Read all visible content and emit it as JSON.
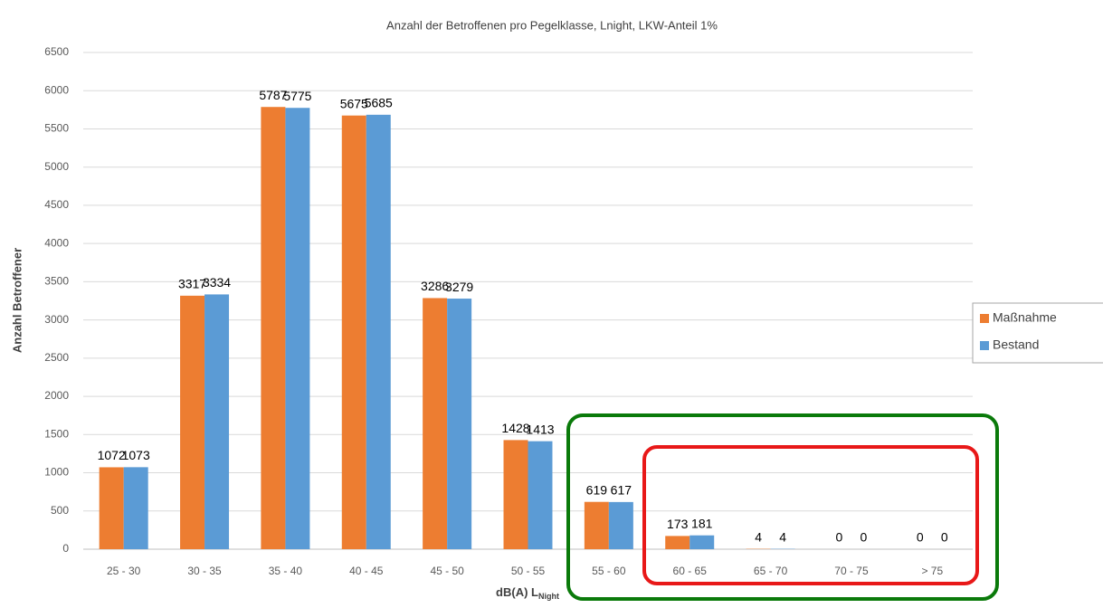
{
  "chart_data": {
    "type": "bar",
    "title": "Anzahl der Betroffenen pro Pegelklasse, Lnight, LKW-Anteil 1%",
    "x_label": "dB(A) L",
    "x_label_subscript": "Night",
    "y_label": "Anzahl Betroffener",
    "categories": [
      "25 - 30",
      "30 - 35",
      "35 - 40",
      "40 - 45",
      "45 - 50",
      "50 - 55",
      "55 - 60",
      "60 - 65",
      "65 - 70",
      "70 - 75",
      "> 75"
    ],
    "series": [
      {
        "name": "Maßnahme",
        "color": "#ed7d31",
        "values": [
          1072,
          3317,
          5787,
          5675,
          3286,
          1428,
          619,
          173,
          4,
          0,
          0
        ]
      },
      {
        "name": "Bestand",
        "color": "#5b9bd5",
        "values": [
          1073,
          3334,
          5775,
          5685,
          3279,
          1413,
          617,
          181,
          4,
          0,
          0
        ]
      }
    ],
    "ylim": [
      0,
      6500
    ],
    "yticks": [
      0,
      500,
      1000,
      1500,
      2000,
      2500,
      3000,
      3500,
      4000,
      4500,
      5000,
      5500,
      6000,
      6500
    ],
    "grid": true,
    "legend": "right"
  }
}
